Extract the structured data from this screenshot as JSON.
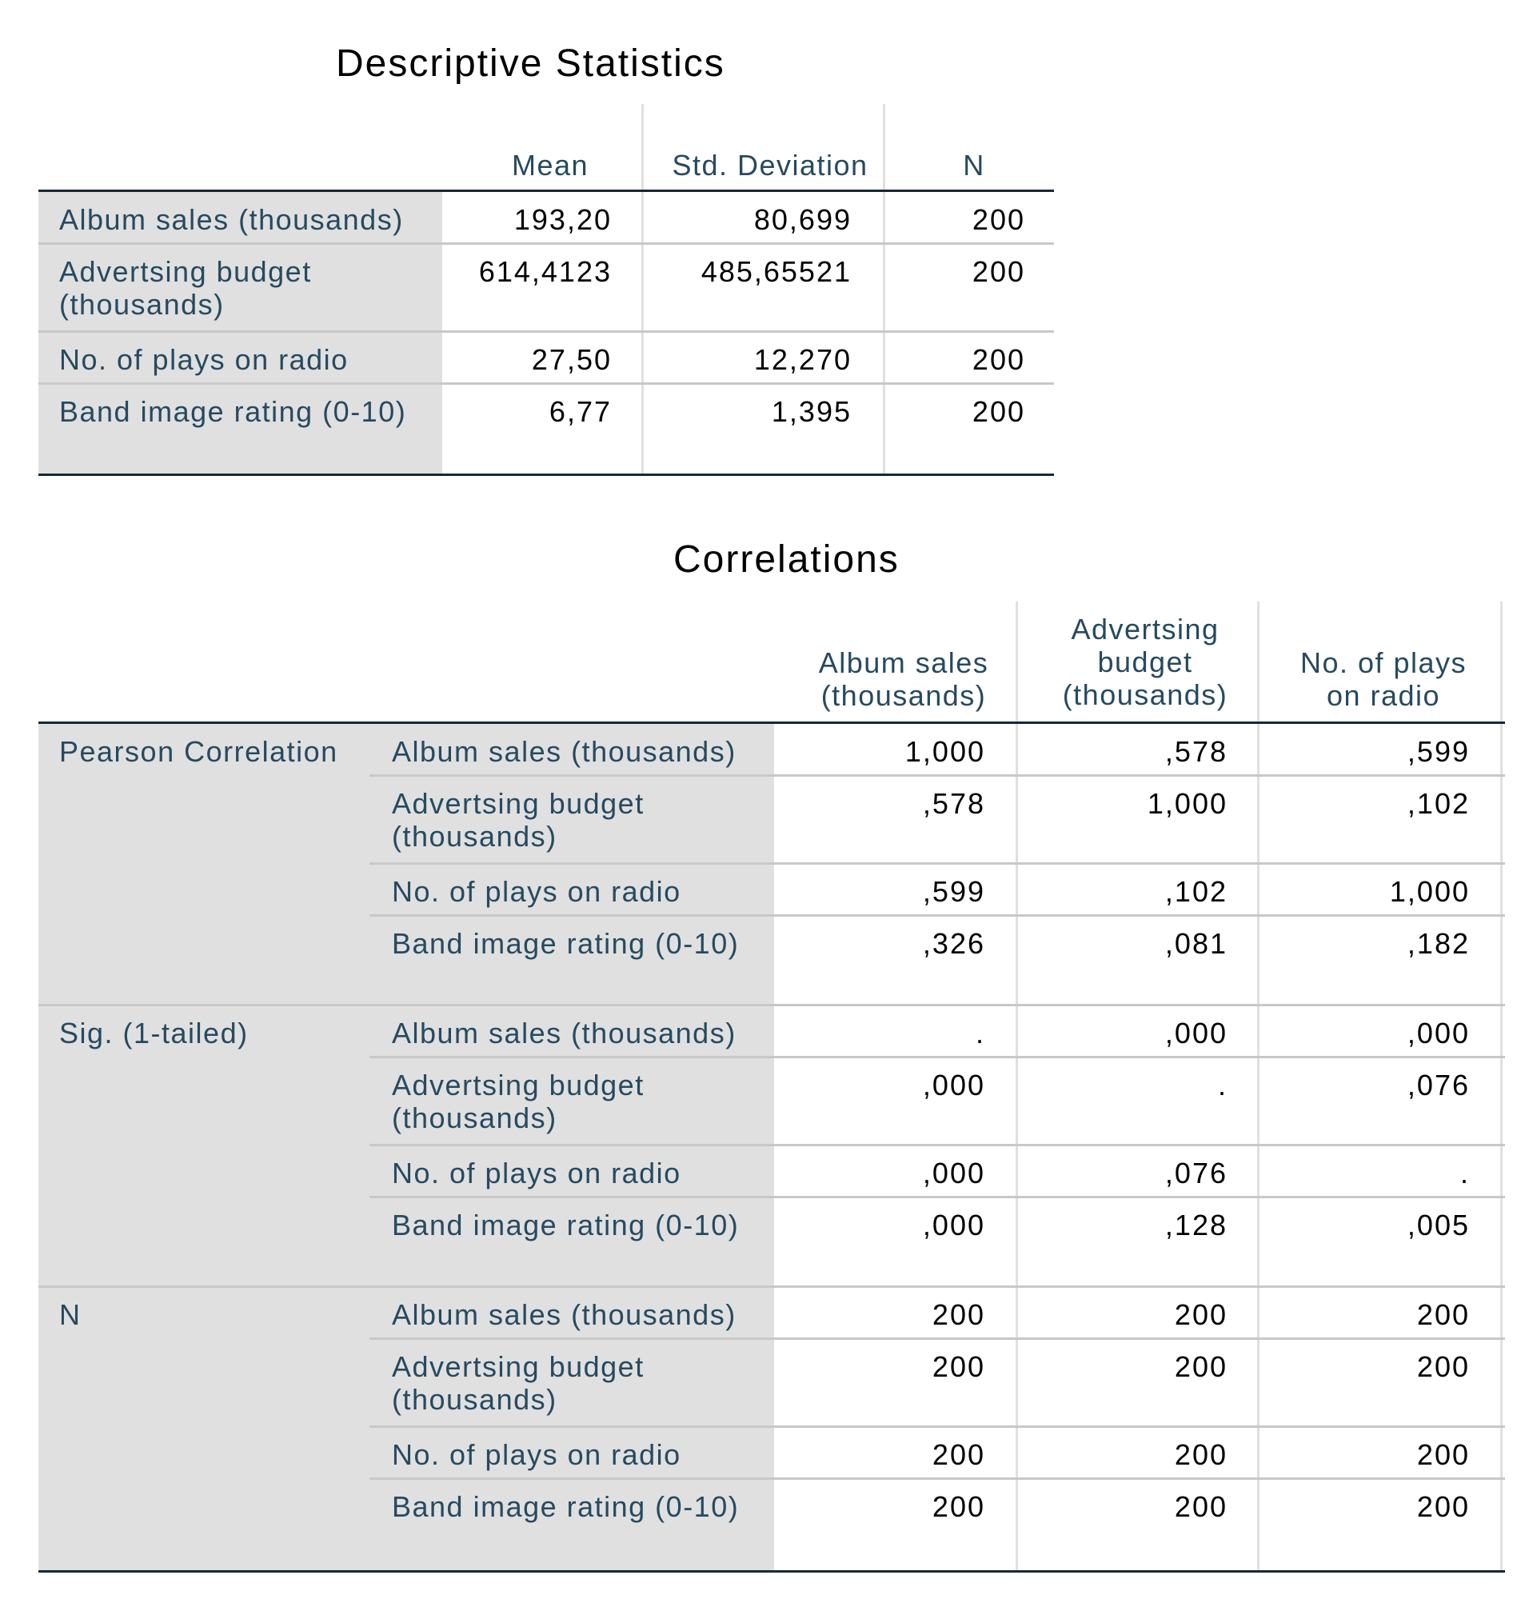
{
  "descriptive": {
    "title": "Descriptive Statistics",
    "headers": [
      "Mean",
      "Std. Deviation",
      "N"
    ],
    "rows": [
      {
        "label": "Album sales (thousands)",
        "values": [
          "193,20",
          "80,699",
          "200"
        ]
      },
      {
        "label": "Advertsing budget\n(thousands)",
        "values": [
          "614,4123",
          "485,65521",
          "200"
        ]
      },
      {
        "label": "No. of plays on radio",
        "values": [
          "27,50",
          "12,270",
          "200"
        ]
      },
      {
        "label": "Band image rating (0-10)",
        "values": [
          "6,77",
          "1,395",
          "200"
        ]
      }
    ]
  },
  "correlations": {
    "title": "Correlations",
    "headers": [
      "Album sales\n(thousands)",
      "Advertsing\nbudget\n(thousands)",
      "No. of plays\non radio"
    ],
    "groups": [
      {
        "label": "Pearson Correlation",
        "rows": [
          {
            "label": "Album sales (thousands)",
            "values": [
              "1,000",
              ",578",
              ",599"
            ]
          },
          {
            "label": "Advertsing budget\n(thousands)",
            "values": [
              ",578",
              "1,000",
              ",102"
            ]
          },
          {
            "label": "No. of plays on radio",
            "values": [
              ",599",
              ",102",
              "1,000"
            ]
          },
          {
            "label": "Band image rating (0-10)",
            "values": [
              ",326",
              ",081",
              ",182"
            ]
          }
        ]
      },
      {
        "label": "Sig. (1-tailed)",
        "rows": [
          {
            "label": "Album sales (thousands)",
            "values": [
              ".",
              ",000",
              ",000"
            ]
          },
          {
            "label": "Advertsing budget\n(thousands)",
            "values": [
              ",000",
              ".",
              ",076"
            ]
          },
          {
            "label": "No. of plays on radio",
            "values": [
              ",000",
              ",076",
              "."
            ]
          },
          {
            "label": "Band image rating (0-10)",
            "values": [
              ",000",
              ",128",
              ",005"
            ]
          }
        ]
      },
      {
        "label": "N",
        "rows": [
          {
            "label": "Album sales (thousands)",
            "values": [
              "200",
              "200",
              "200"
            ]
          },
          {
            "label": "Advertsing budget\n(thousands)",
            "values": [
              "200",
              "200",
              "200"
            ]
          },
          {
            "label": "No. of plays on radio",
            "values": [
              "200",
              "200",
              "200"
            ]
          },
          {
            "label": "Band image rating (0-10)",
            "values": [
              "200",
              "200",
              "200"
            ]
          }
        ]
      }
    ]
  }
}
